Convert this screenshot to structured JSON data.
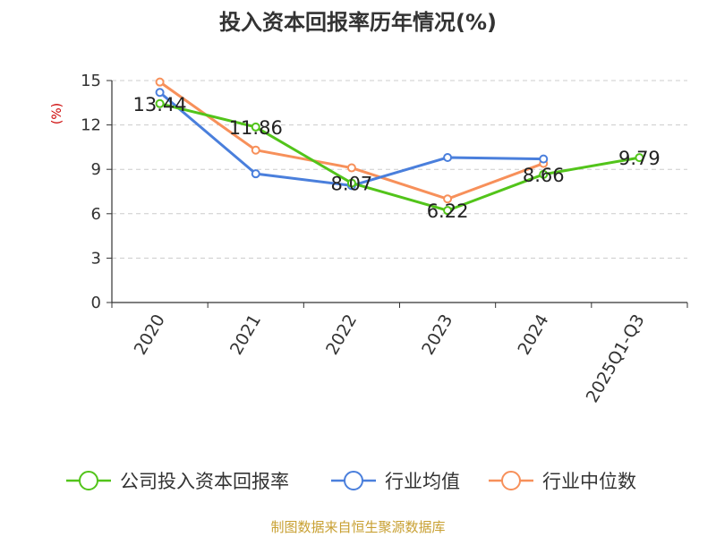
{
  "chart_data": {
    "type": "line",
    "title": "投入资本回报率历年情况(%)",
    "ylabel": "(%)",
    "xlabel": "",
    "categories": [
      "2020",
      "2021",
      "2022",
      "2023",
      "2024",
      "2025Q1-Q3"
    ],
    "ylim": [
      0,
      15
    ],
    "yticks": [
      0,
      3,
      6,
      9,
      12,
      15
    ],
    "grid": true,
    "legend_position": "bottom",
    "series": [
      {
        "name": "公司投入资本回报率",
        "color": "#52c41a",
        "values": [
          13.44,
          11.86,
          8.07,
          6.22,
          8.66,
          9.79
        ],
        "labels": [
          "13.44",
          "11.86",
          "8.07",
          "6.22",
          "8.66",
          "9.79"
        ]
      },
      {
        "name": "行业均值",
        "color": "#4a7fdc",
        "values": [
          14.2,
          8.7,
          7.9,
          9.8,
          9.7,
          null
        ]
      },
      {
        "name": "行业中位数",
        "color": "#f7905a",
        "values": [
          14.9,
          10.3,
          9.1,
          7.0,
          9.4,
          null
        ]
      }
    ]
  },
  "source": "制图数据来自恒生聚源数据库",
  "colors": {
    "ylabel": "#cc0000",
    "source": "#c8a032",
    "grid": "#cccccc",
    "axis": "#333333"
  }
}
